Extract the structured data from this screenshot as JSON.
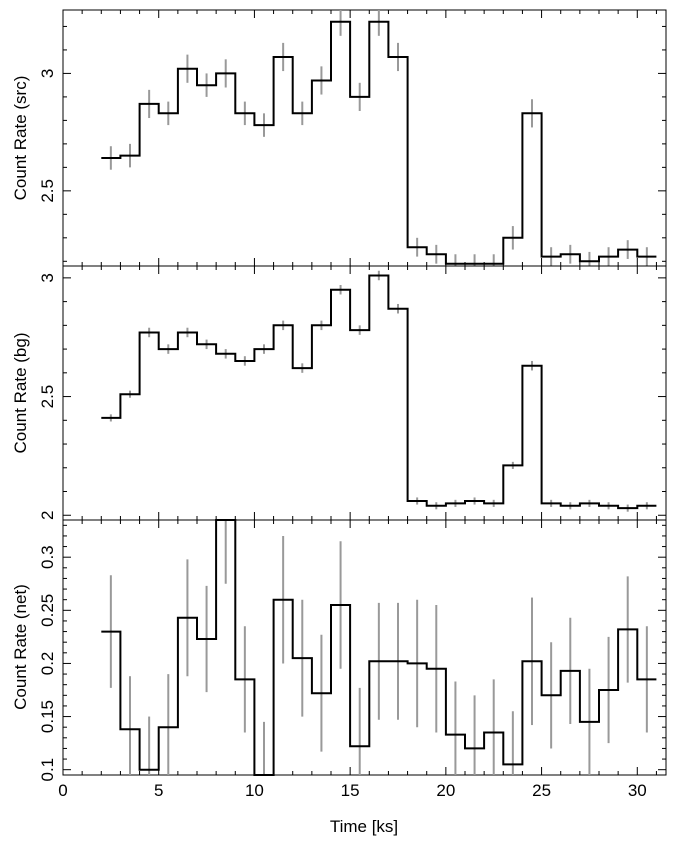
{
  "chart_data": [
    {
      "type": "line",
      "ylabel": "Count Rate (src)",
      "xlabel": "",
      "xlim": [
        0,
        31.5
      ],
      "ylim": [
        2.18,
        3.27
      ],
      "yticks": [
        2.5,
        3
      ],
      "yticklabels": [
        "2.5",
        "3"
      ],
      "colors": {
        "line": "#000000",
        "errorbar": "#999999"
      },
      "series": [
        {
          "x": [
            2.5,
            3.5,
            4.5,
            5.5,
            6.5,
            7.5,
            8.5,
            9.5,
            10.5,
            11.5,
            12.5,
            13.5,
            14.5,
            15.5,
            16.5,
            17.5,
            18.5,
            19.5,
            20.5,
            21.5,
            22.5,
            23.5,
            24.5,
            25.5,
            26.5,
            27.5,
            28.5,
            29.5,
            30.5
          ],
          "y": [
            2.64,
            2.65,
            2.87,
            2.83,
            3.02,
            2.95,
            3.0,
            2.83,
            2.78,
            3.07,
            2.83,
            2.97,
            3.22,
            2.9,
            3.22,
            3.07,
            2.26,
            2.23,
            2.19,
            2.19,
            2.19,
            2.3,
            2.83,
            2.22,
            2.23,
            2.2,
            2.22,
            2.25,
            2.22
          ],
          "yerr": [
            0.05,
            0.05,
            0.06,
            0.05,
            0.06,
            0.05,
            0.06,
            0.05,
            0.05,
            0.06,
            0.05,
            0.06,
            0.06,
            0.06,
            0.06,
            0.06,
            0.04,
            0.04,
            0.04,
            0.04,
            0.04,
            0.05,
            0.06,
            0.04,
            0.04,
            0.04,
            0.04,
            0.04,
            0.04
          ]
        }
      ]
    },
    {
      "type": "line",
      "ylabel": "Count Rate (bg)",
      "xlabel": "",
      "xlim": [
        0,
        31.5
      ],
      "ylim": [
        1.98,
        3.05
      ],
      "yticks": [
        2,
        2.5,
        3
      ],
      "yticklabels": [
        "2",
        "2.5",
        "3"
      ],
      "colors": {
        "line": "#000000",
        "errorbar": "#999999"
      },
      "series": [
        {
          "x": [
            2.5,
            3.5,
            4.5,
            5.5,
            6.5,
            7.5,
            8.5,
            9.5,
            10.5,
            11.5,
            12.5,
            13.5,
            14.5,
            15.5,
            16.5,
            17.5,
            18.5,
            19.5,
            20.5,
            21.5,
            22.5,
            23.5,
            24.5,
            25.5,
            26.5,
            27.5,
            28.5,
            29.5,
            30.5
          ],
          "y": [
            2.41,
            2.51,
            2.77,
            2.7,
            2.77,
            2.72,
            2.68,
            2.65,
            2.7,
            2.8,
            2.62,
            2.8,
            2.95,
            2.78,
            3.01,
            2.87,
            2.06,
            2.04,
            2.05,
            2.06,
            2.05,
            2.21,
            2.63,
            2.05,
            2.04,
            2.05,
            2.04,
            2.03,
            2.04
          ],
          "yerr": [
            0.015,
            0.015,
            0.02,
            0.02,
            0.02,
            0.02,
            0.02,
            0.02,
            0.02,
            0.02,
            0.02,
            0.02,
            0.02,
            0.02,
            0.02,
            0.02,
            0.015,
            0.015,
            0.015,
            0.015,
            0.015,
            0.015,
            0.02,
            0.015,
            0.015,
            0.015,
            0.015,
            0.015,
            0.015
          ]
        }
      ]
    },
    {
      "type": "line",
      "ylabel": "Count Rate (net)",
      "xlabel": "Time [ks]",
      "xlim": [
        0,
        31.5
      ],
      "ylim": [
        0.095,
        0.335
      ],
      "yticks": [
        0.1,
        0.15,
        0.2,
        0.25,
        0.3
      ],
      "yticklabels": [
        "0.1",
        "0.15",
        "0.2",
        "0.25",
        "0.3"
      ],
      "xticks": [
        0,
        5,
        10,
        15,
        20,
        25,
        30
      ],
      "xticklabels": [
        "0",
        "5",
        "10",
        "15",
        "20",
        "25",
        "30"
      ],
      "colors": {
        "line": "#000000",
        "errorbar": "#999999"
      },
      "series": [
        {
          "x": [
            2.5,
            3.5,
            4.5,
            5.5,
            6.5,
            7.5,
            8.5,
            9.5,
            10.5,
            11.5,
            12.5,
            13.5,
            14.5,
            15.5,
            16.5,
            17.5,
            18.5,
            19.5,
            20.5,
            21.5,
            22.5,
            23.5,
            24.5,
            25.5,
            26.5,
            27.5,
            28.5,
            29.5,
            30.5
          ],
          "y": [
            0.23,
            0.138,
            0.1,
            0.14,
            0.243,
            0.223,
            0.335,
            0.185,
            0.095,
            0.26,
            0.205,
            0.172,
            0.255,
            0.122,
            0.202,
            0.202,
            0.2,
            0.195,
            0.133,
            0.12,
            0.135,
            0.105,
            0.202,
            0.17,
            0.193,
            0.145,
            0.175,
            0.232,
            0.185
          ],
          "yerr": [
            0.053,
            0.05,
            0.05,
            0.05,
            0.055,
            0.05,
            0.06,
            0.05,
            0.05,
            0.06,
            0.055,
            0.055,
            0.06,
            0.055,
            0.055,
            0.055,
            0.06,
            0.06,
            0.05,
            0.05,
            0.05,
            0.05,
            0.06,
            0.05,
            0.05,
            0.05,
            0.05,
            0.05,
            0.05
          ]
        }
      ]
    }
  ]
}
